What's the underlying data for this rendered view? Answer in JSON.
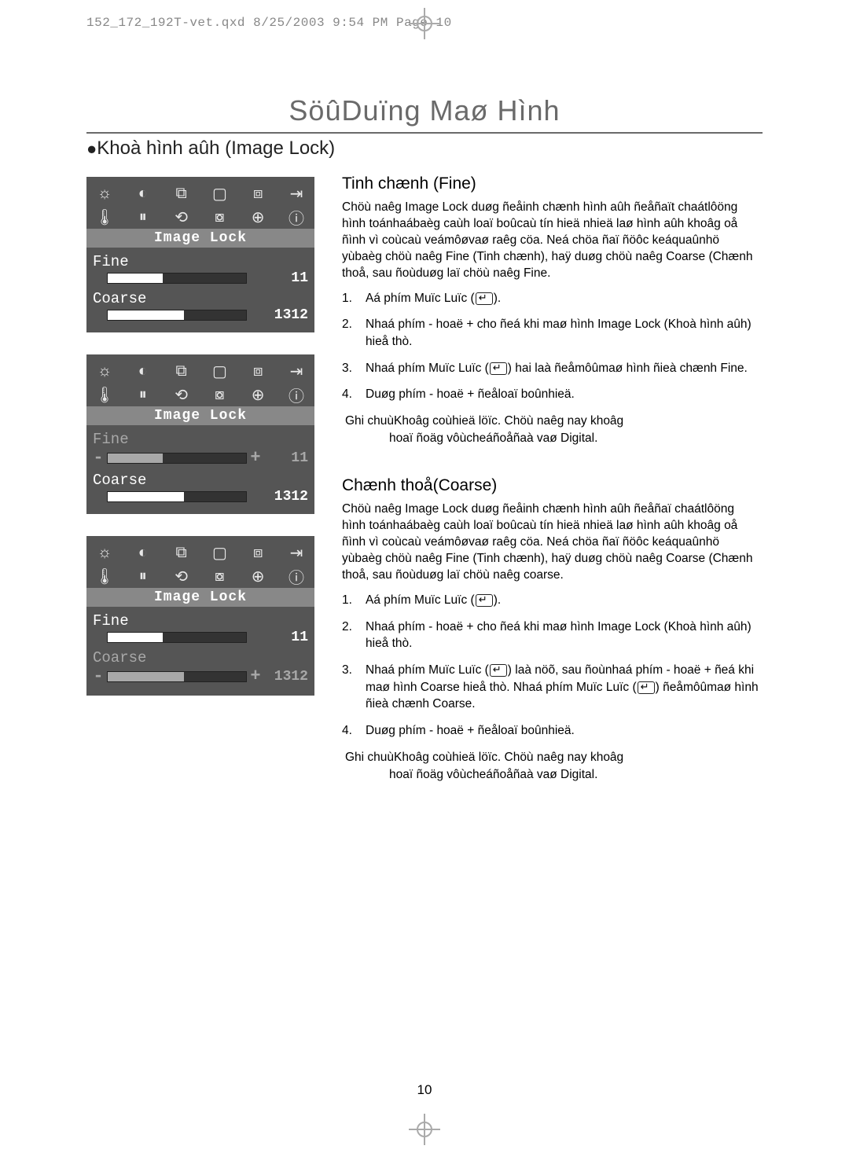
{
  "header_meta": "152_172_192T-vet.qxd  8/25/2003  9:54 PM  Page 10",
  "main_title": "SöûDuïng Maø Hình",
  "section_title": "Khoà hình aûh (Image Lock)",
  "page_number": "10",
  "osd_common": {
    "label_bar": "Image Lock",
    "icons_row1": [
      "☼",
      "◐",
      "⧉",
      "▢",
      "⧈",
      "⇥"
    ],
    "icons_row2": [
      "🌡",
      "⏸",
      "⟲",
      "⧇",
      "⊕",
      "ⓘ"
    ]
  },
  "osd_panels": [
    {
      "fine": {
        "name": "Fine",
        "value": "11",
        "sel": false,
        "minus": "",
        "plus": "",
        "name_color": "white",
        "fill_pct": 40,
        "fill_class": "fill-white",
        "val_color": "white"
      },
      "coarse": {
        "name": "Coarse",
        "value": "1312",
        "sel": false,
        "minus": "",
        "plus": "",
        "name_color": "white",
        "fill_pct": 55,
        "fill_class": "fill-white",
        "val_color": "white"
      }
    },
    {
      "fine": {
        "name": "Fine",
        "value": "11",
        "sel": true,
        "minus": "-",
        "plus": "+",
        "name_color": "gray",
        "fill_pct": 40,
        "fill_class": "fill-gray",
        "val_color": "gray"
      },
      "coarse": {
        "name": "Coarse",
        "value": "1312",
        "sel": false,
        "minus": "",
        "plus": "",
        "name_color": "white",
        "fill_pct": 55,
        "fill_class": "fill-white",
        "val_color": "white"
      }
    },
    {
      "fine": {
        "name": "Fine",
        "value": "11",
        "sel": false,
        "minus": "",
        "plus": "",
        "name_color": "white",
        "fill_pct": 40,
        "fill_class": "fill-white",
        "val_color": "white"
      },
      "coarse": {
        "name": "Coarse",
        "value": "1312",
        "sel": true,
        "minus": "-",
        "plus": "+",
        "name_color": "gray",
        "fill_pct": 55,
        "fill_class": "fill-gray",
        "val_color": "gray"
      }
    }
  ],
  "fine_section": {
    "heading": "Tinh chænh (Fine)",
    "paragraph": "Chöù naêg Image Lock duøg ñeåinh chænh hình aûh ñeåñaït chaátlôöng hình toánhaábaèg caùh loaï boûcaù tín hieä nhieä laø hình aûh khoâg oå ñình vì coùcaù veámôøvaø raêg cöa. Neá chöa ñaï ñöôc keáquaûnhö yùbaèg chöù naêg Fine (Tinh chænh), haÿ duøg chöù naêg Coarse (Chænh thoå, sau ñoùduøg laï chöù naêg Fine.",
    "steps": [
      "Aá phím Muïc Luïc (↵).",
      "Nhaá phím - hoaë + cho ñeá khi maø hình Image Lock (Khoà hình aûh) hieå thò.",
      "Nhaá phím Muïc Luïc (↵) hai laà ñeåmôûmaø hình ñieà chænh Fine.",
      "Duøg phím - hoaë + ñeåloaï boûnhieä."
    ],
    "note_lead": "Ghi chuùKhoâg coùhieä löïc. Chöù naêg nay khoâg",
    "note_cont": "hoaï ñoäg vôùcheáñoåñaà vaø Digital."
  },
  "coarse_section": {
    "heading": "Chænh thoå(Coarse)",
    "paragraph": "Chöù naêg Image Lock duøg ñeåinh chænh hình aûh ñeåñaï chaátlôöng hình toánhaábaèg caùh loaï boûcaù tín hieä nhieä laø hình aûh khoâg oå ñình vì coùcaù veámôøvaø raêg cöa. Neá chöa ñaï ñöôc keáquaûnhö yùbaèg chöù naêg Fine (Tinh chænh), haÿ duøg chöù naêg Coarse (Chænh thoå, sau ñoùduøg laï chöù naêg coarse.",
    "steps": [
      "Aá phím Muïc Luïc (↵).",
      "Nhaá phím - hoaë + cho ñeá khi maø hình Image Lock (Khoà hình aûh) hieå thò.",
      "Nhaá phím Muïc Luïc (↵) laà nöõ, sau ñoùnhaá phím - hoaë + ñeá khi maø hình Coarse hieå thò. Nhaá phím Muïc Luïc (↵) ñeåmôûmaø hình ñieà chænh Coarse.",
      "Duøg phím - hoaë + ñeåloaï boûnhieä."
    ],
    "note_lead": "Ghi chuùKhoâg coùhieä löïc. Chöù naêg nay khoâg",
    "note_cont": "hoaï ñoäg vôùcheáñoåñaà vaø Digital."
  }
}
